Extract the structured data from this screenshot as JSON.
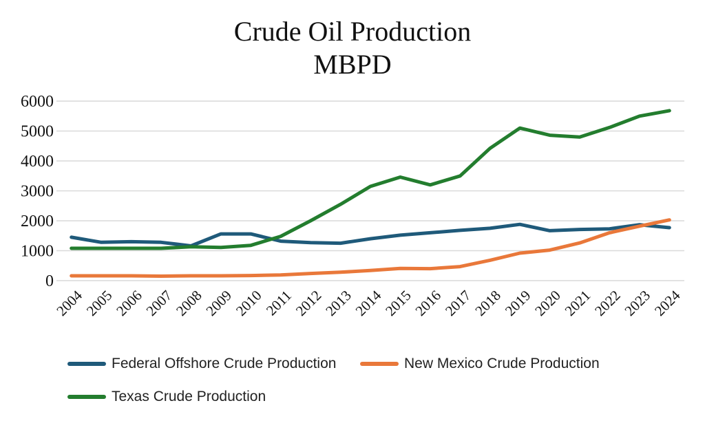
{
  "chart_data": {
    "type": "line",
    "title": "Crude Oil Production",
    "subtitle": "MBPD",
    "xlabel": "",
    "ylabel": "",
    "ylim": [
      0,
      6000
    ],
    "yticks": [
      0,
      1000,
      2000,
      3000,
      4000,
      5000,
      6000
    ],
    "grid": true,
    "legend_position": "bottom",
    "categories": [
      "2004",
      "2005",
      "2006",
      "2007",
      "2008",
      "2009",
      "2010",
      "2011",
      "2012",
      "2013",
      "2014",
      "2015",
      "2016",
      "2017",
      "2018",
      "2019",
      "2020",
      "2021",
      "2022",
      "2023",
      "2024"
    ],
    "series": [
      {
        "name": "Federal Offshore Crude Production",
        "color": "#1f5a7a",
        "values": [
          1450,
          1280,
          1300,
          1280,
          1160,
          1560,
          1560,
          1320,
          1270,
          1250,
          1400,
          1520,
          1600,
          1680,
          1750,
          1880,
          1670,
          1710,
          1730,
          1870,
          1770
        ]
      },
      {
        "name": "New Mexico Crude Production",
        "color": "#e9783a",
        "values": [
          160,
          160,
          160,
          150,
          160,
          160,
          170,
          190,
          240,
          280,
          340,
          410,
          400,
          470,
          680,
          920,
          1020,
          1260,
          1600,
          1820,
          2030
        ]
      },
      {
        "name": "Texas Crude Production",
        "color": "#237d2e",
        "values": [
          1080,
          1080,
          1080,
          1080,
          1130,
          1110,
          1180,
          1480,
          2000,
          2550,
          3150,
          3460,
          3200,
          3500,
          4420,
          5100,
          4860,
          4800,
          5120,
          5500,
          5680
        ]
      }
    ]
  }
}
